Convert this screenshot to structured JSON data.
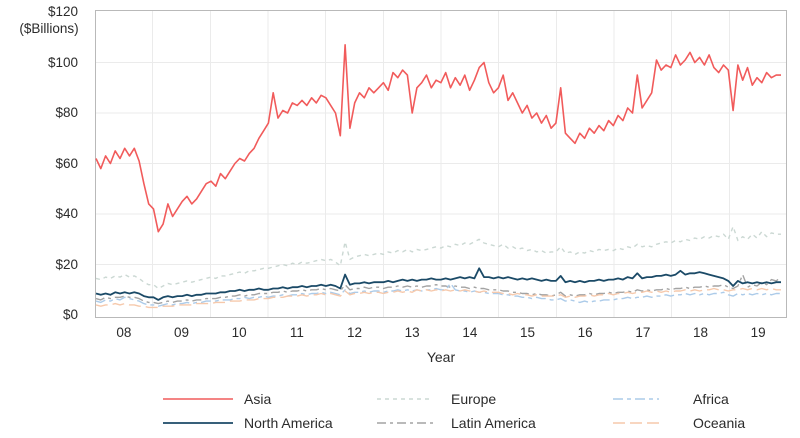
{
  "chart_data": {
    "type": "line",
    "xlabel": "Year",
    "y_axis": {
      "unit_note": "($Billions)",
      "ticks": [
        0,
        20,
        40,
        60,
        80,
        100,
        120
      ],
      "tick_labels": [
        "$0",
        "$20",
        "$40",
        "$60",
        "$80",
        "$100",
        "$120"
      ],
      "range": [
        0,
        120
      ]
    },
    "x_axis": {
      "tick_labels": [
        "08",
        "09",
        "10",
        "11",
        "12",
        "13",
        "14",
        "15",
        "16",
        "17",
        "18",
        "19"
      ],
      "points_per_year": 12
    },
    "grid": true,
    "legend_position": "bottom",
    "colors": {
      "grid": "#ebebeb",
      "frame": "#b9b9b9",
      "text": "#2b2b2b"
    },
    "series": [
      {
        "name": "Asia",
        "color": "#f15b5b",
        "dash": "",
        "width": 1.6,
        "values": [
          62,
          58,
          63,
          60,
          65,
          62,
          66,
          63,
          66,
          61,
          52,
          44,
          42,
          33,
          36,
          44,
          39,
          42,
          45,
          47,
          44,
          46,
          49,
          52,
          53,
          51,
          56,
          54,
          57,
          60,
          62,
          61,
          64,
          66,
          70,
          73,
          76,
          88,
          78,
          81,
          80,
          84,
          83,
          85,
          83,
          86,
          84,
          87,
          86,
          83,
          80,
          71,
          107,
          74,
          84,
          88,
          86,
          90,
          88,
          90,
          92,
          89,
          96,
          94,
          97,
          95,
          80,
          90,
          92,
          95,
          90,
          93,
          92,
          96,
          90,
          94,
          91,
          95,
          89,
          93,
          98,
          100,
          92,
          88,
          90,
          95,
          85,
          88,
          84,
          80,
          83,
          78,
          80,
          76,
          79,
          74,
          76,
          90,
          72,
          70,
          68,
          72,
          70,
          74,
          72,
          75,
          73,
          77,
          75,
          79,
          77,
          82,
          80,
          95,
          82,
          85,
          88,
          101,
          97,
          99,
          98,
          103,
          99,
          101,
          104,
          100,
          102,
          99,
          103,
          98,
          96,
          99,
          97,
          81,
          99,
          93,
          98,
          91,
          94,
          92,
          96,
          94,
          95,
          95
        ]
      },
      {
        "name": "North America",
        "color": "#1b4a67",
        "dash": "",
        "width": 1.8,
        "values": [
          8.5,
          8,
          8.5,
          8,
          9,
          8.5,
          9,
          8.5,
          9,
          8.5,
          7.5,
          7,
          7,
          6,
          7,
          7.5,
          7,
          7.5,
          7.5,
          8,
          7.5,
          8,
          8,
          8.5,
          8.5,
          8.5,
          9,
          9,
          9.5,
          9.5,
          10,
          9.5,
          10,
          10,
          10.5,
          10,
          10,
          10.5,
          10.5,
          11,
          10.5,
          11,
          11,
          11.5,
          11,
          11.5,
          11.5,
          12,
          11.5,
          12,
          11.5,
          10.5,
          16,
          12,
          12.5,
          12.5,
          13,
          12.5,
          13,
          13,
          13,
          13.5,
          13,
          13.5,
          14,
          13.5,
          14,
          13.5,
          14,
          14,
          14.5,
          14,
          14,
          14.5,
          14,
          14.5,
          15,
          14.5,
          15,
          14.5,
          18.5,
          15,
          15,
          14.5,
          15,
          14.5,
          15,
          14.5,
          14,
          14.5,
          14,
          14.5,
          14,
          13.5,
          14,
          13.5,
          13.5,
          15.5,
          13,
          13.5,
          13,
          13.5,
          13,
          13.5,
          13.5,
          14,
          13.5,
          14,
          14,
          14.5,
          14,
          15,
          14.5,
          16.5,
          14.5,
          15,
          15,
          15.5,
          15.5,
          16,
          15.5,
          16,
          17.5,
          16,
          16.5,
          16.5,
          17,
          16.5,
          16,
          15.5,
          15,
          14.5,
          13.5,
          11.5,
          13.5,
          12.5,
          13,
          12.5,
          13,
          12.5,
          13,
          12.5,
          13,
          13
        ]
      },
      {
        "name": "Europe",
        "color": "#cbd8d3",
        "dash": "4,4",
        "width": 1.4,
        "values": [
          14.5,
          14,
          15,
          14.5,
          15.5,
          15,
          16,
          15,
          15.5,
          14.5,
          13,
          12,
          12,
          10.5,
          11.5,
          12.5,
          12,
          12.5,
          13,
          13.5,
          13,
          13.5,
          14,
          14.5,
          15,
          14.5,
          15.5,
          15.5,
          16,
          16.5,
          17,
          16.5,
          17.5,
          17.5,
          18,
          18.5,
          18.5,
          19,
          19.5,
          20,
          19.5,
          20.5,
          20,
          21,
          20.5,
          21,
          21.5,
          22,
          21.5,
          22,
          21,
          19.5,
          29,
          22,
          23,
          23.5,
          24,
          23.5,
          24,
          24.5,
          24,
          25,
          24.5,
          25.5,
          25,
          26,
          25,
          26,
          25.5,
          26,
          26.5,
          27,
          26.5,
          27.5,
          27,
          28,
          27.5,
          28.5,
          28,
          29,
          30,
          28.5,
          28,
          27.5,
          27,
          28,
          26.5,
          27,
          26,
          26.5,
          25.5,
          26,
          25,
          25.5,
          24.5,
          25,
          25,
          27,
          24.5,
          25,
          24,
          25,
          24.5,
          25.5,
          25,
          26,
          25.5,
          26,
          25.5,
          26.5,
          26,
          27,
          26.5,
          28,
          27,
          27.5,
          27,
          28,
          28.5,
          29,
          28.5,
          29.5,
          29,
          30,
          29.5,
          30.5,
          30,
          31,
          30.5,
          31.5,
          31,
          32,
          30,
          35,
          29.5,
          31,
          30,
          32,
          30.5,
          33,
          31,
          32.5,
          32,
          32
        ]
      },
      {
        "name": "Latin America",
        "color": "#a3a3a3",
        "dash": "9,4,3,4",
        "width": 1.4,
        "values": [
          6.5,
          6,
          7,
          6.5,
          7,
          7,
          7.5,
          7,
          7,
          6.5,
          5.5,
          5,
          5,
          4.5,
          5,
          5.5,
          5,
          5.5,
          5.5,
          6,
          5.5,
          6,
          6,
          6.5,
          6.5,
          6.5,
          7,
          7,
          7.5,
          7.5,
          8,
          7.5,
          8,
          8,
          8.5,
          8.5,
          8.5,
          9,
          9,
          9.5,
          9,
          9.5,
          9.5,
          10,
          9.5,
          10,
          10,
          10.5,
          10,
          10.5,
          10,
          9.5,
          12,
          10,
          10.5,
          10.5,
          11,
          10.5,
          11,
          11,
          10.5,
          11,
          11,
          11.5,
          11,
          11.5,
          11,
          11.5,
          11,
          11.5,
          11.5,
          12,
          11.5,
          11.5,
          11,
          11.5,
          11,
          11,
          10.5,
          11,
          10.5,
          10.5,
          10,
          10,
          10,
          9.5,
          9.5,
          9,
          9,
          8.5,
          8.5,
          8,
          8.5,
          8,
          8,
          7.5,
          8,
          9,
          7.5,
          8,
          7.5,
          8,
          8,
          8.5,
          8,
          8.5,
          8.5,
          9,
          8.5,
          9,
          9,
          9.5,
          9,
          10,
          9.5,
          10,
          9.5,
          10,
          10,
          10.5,
          10,
          10.5,
          10.5,
          11,
          10.5,
          11,
          11,
          11.5,
          11,
          11.5,
          11.5,
          12,
          11,
          10.5,
          11.5,
          16,
          11,
          12,
          11.5,
          13,
          12,
          14,
          13.5,
          15
        ]
      },
      {
        "name": "Africa",
        "color": "#accbe9",
        "dash": "10,4,4,4",
        "width": 1.4,
        "values": [
          5.5,
          5,
          6,
          5.5,
          6.5,
          6,
          7,
          6.5,
          6,
          5.5,
          4.5,
          4,
          4,
          3.5,
          4,
          4.5,
          4,
          4.5,
          4.5,
          5,
          4.5,
          5,
          5,
          5.5,
          5.5,
          5.5,
          6,
          6,
          6,
          6.5,
          6.5,
          7,
          6.5,
          7,
          7,
          7.5,
          7,
          7.5,
          7.5,
          8,
          7.5,
          8,
          8,
          8.5,
          8,
          8.5,
          8.5,
          9,
          8.5,
          9,
          8.5,
          8,
          10,
          8.5,
          9,
          9,
          9.5,
          9,
          9.5,
          9.5,
          9,
          9.5,
          9.5,
          10,
          9.5,
          10,
          9.5,
          10,
          9.5,
          10,
          10,
          10.5,
          10,
          10,
          12.5,
          10,
          9.5,
          9.5,
          9,
          9.5,
          9,
          9,
          8.5,
          8.5,
          8.5,
          8,
          8,
          7.5,
          7.5,
          7,
          7,
          6.5,
          7,
          6.5,
          6.5,
          6,
          6,
          6.5,
          5.5,
          6,
          5.5,
          5,
          5.5,
          5,
          5.5,
          5.5,
          6,
          6,
          6,
          6.5,
          6.5,
          7,
          6.5,
          7,
          7,
          7.5,
          7,
          7.5,
          7.5,
          8,
          7.5,
          8,
          8,
          8.5,
          8,
          8.5,
          8,
          8.5,
          8,
          8.5,
          8.5,
          9,
          8,
          7.5,
          8.5,
          8,
          8.5,
          8,
          8.5,
          8,
          8.5,
          8,
          8.5,
          8.5
        ]
      },
      {
        "name": "Oceania",
        "color": "#f6c9ac",
        "dash": "12,5",
        "width": 1.4,
        "values": [
          4,
          3.5,
          4,
          4,
          4.5,
          4,
          4.5,
          4,
          4,
          3.5,
          3.5,
          3,
          3,
          3,
          3.5,
          3.5,
          3.5,
          4,
          4,
          4,
          4,
          4.5,
          4.5,
          4.5,
          4.5,
          5,
          5,
          5,
          5.5,
          5.5,
          5.5,
          6,
          6,
          6,
          6.5,
          6.5,
          6.5,
          7,
          7,
          7,
          7.5,
          7.5,
          7.5,
          8,
          7.5,
          8,
          8,
          8.5,
          8,
          8.5,
          8,
          7.5,
          9.5,
          8,
          8.5,
          8.5,
          9,
          8.5,
          9,
          9,
          8.5,
          9,
          9,
          9.5,
          9,
          9.5,
          9,
          10,
          9.5,
          10,
          9.5,
          10,
          9.5,
          10,
          9.5,
          10,
          9.5,
          10,
          9.5,
          9.5,
          9,
          9.5,
          9,
          9,
          9,
          8.5,
          8.5,
          8,
          8.5,
          8,
          8,
          7.5,
          8,
          7.5,
          7.5,
          7.5,
          7.5,
          8,
          7,
          7.5,
          7,
          7.5,
          7.5,
          8,
          7.5,
          8,
          8,
          8.5,
          8,
          8.5,
          8.5,
          9,
          8.5,
          9,
          9,
          9.5,
          9,
          9.5,
          9,
          9.5,
          9,
          9.5,
          9.5,
          10,
          9.5,
          10,
          9.5,
          10,
          10,
          10.5,
          10,
          10,
          9.5,
          10,
          10,
          10.5,
          10,
          10.5,
          10,
          10.5,
          10,
          10.5,
          10,
          10
        ]
      }
    ]
  }
}
